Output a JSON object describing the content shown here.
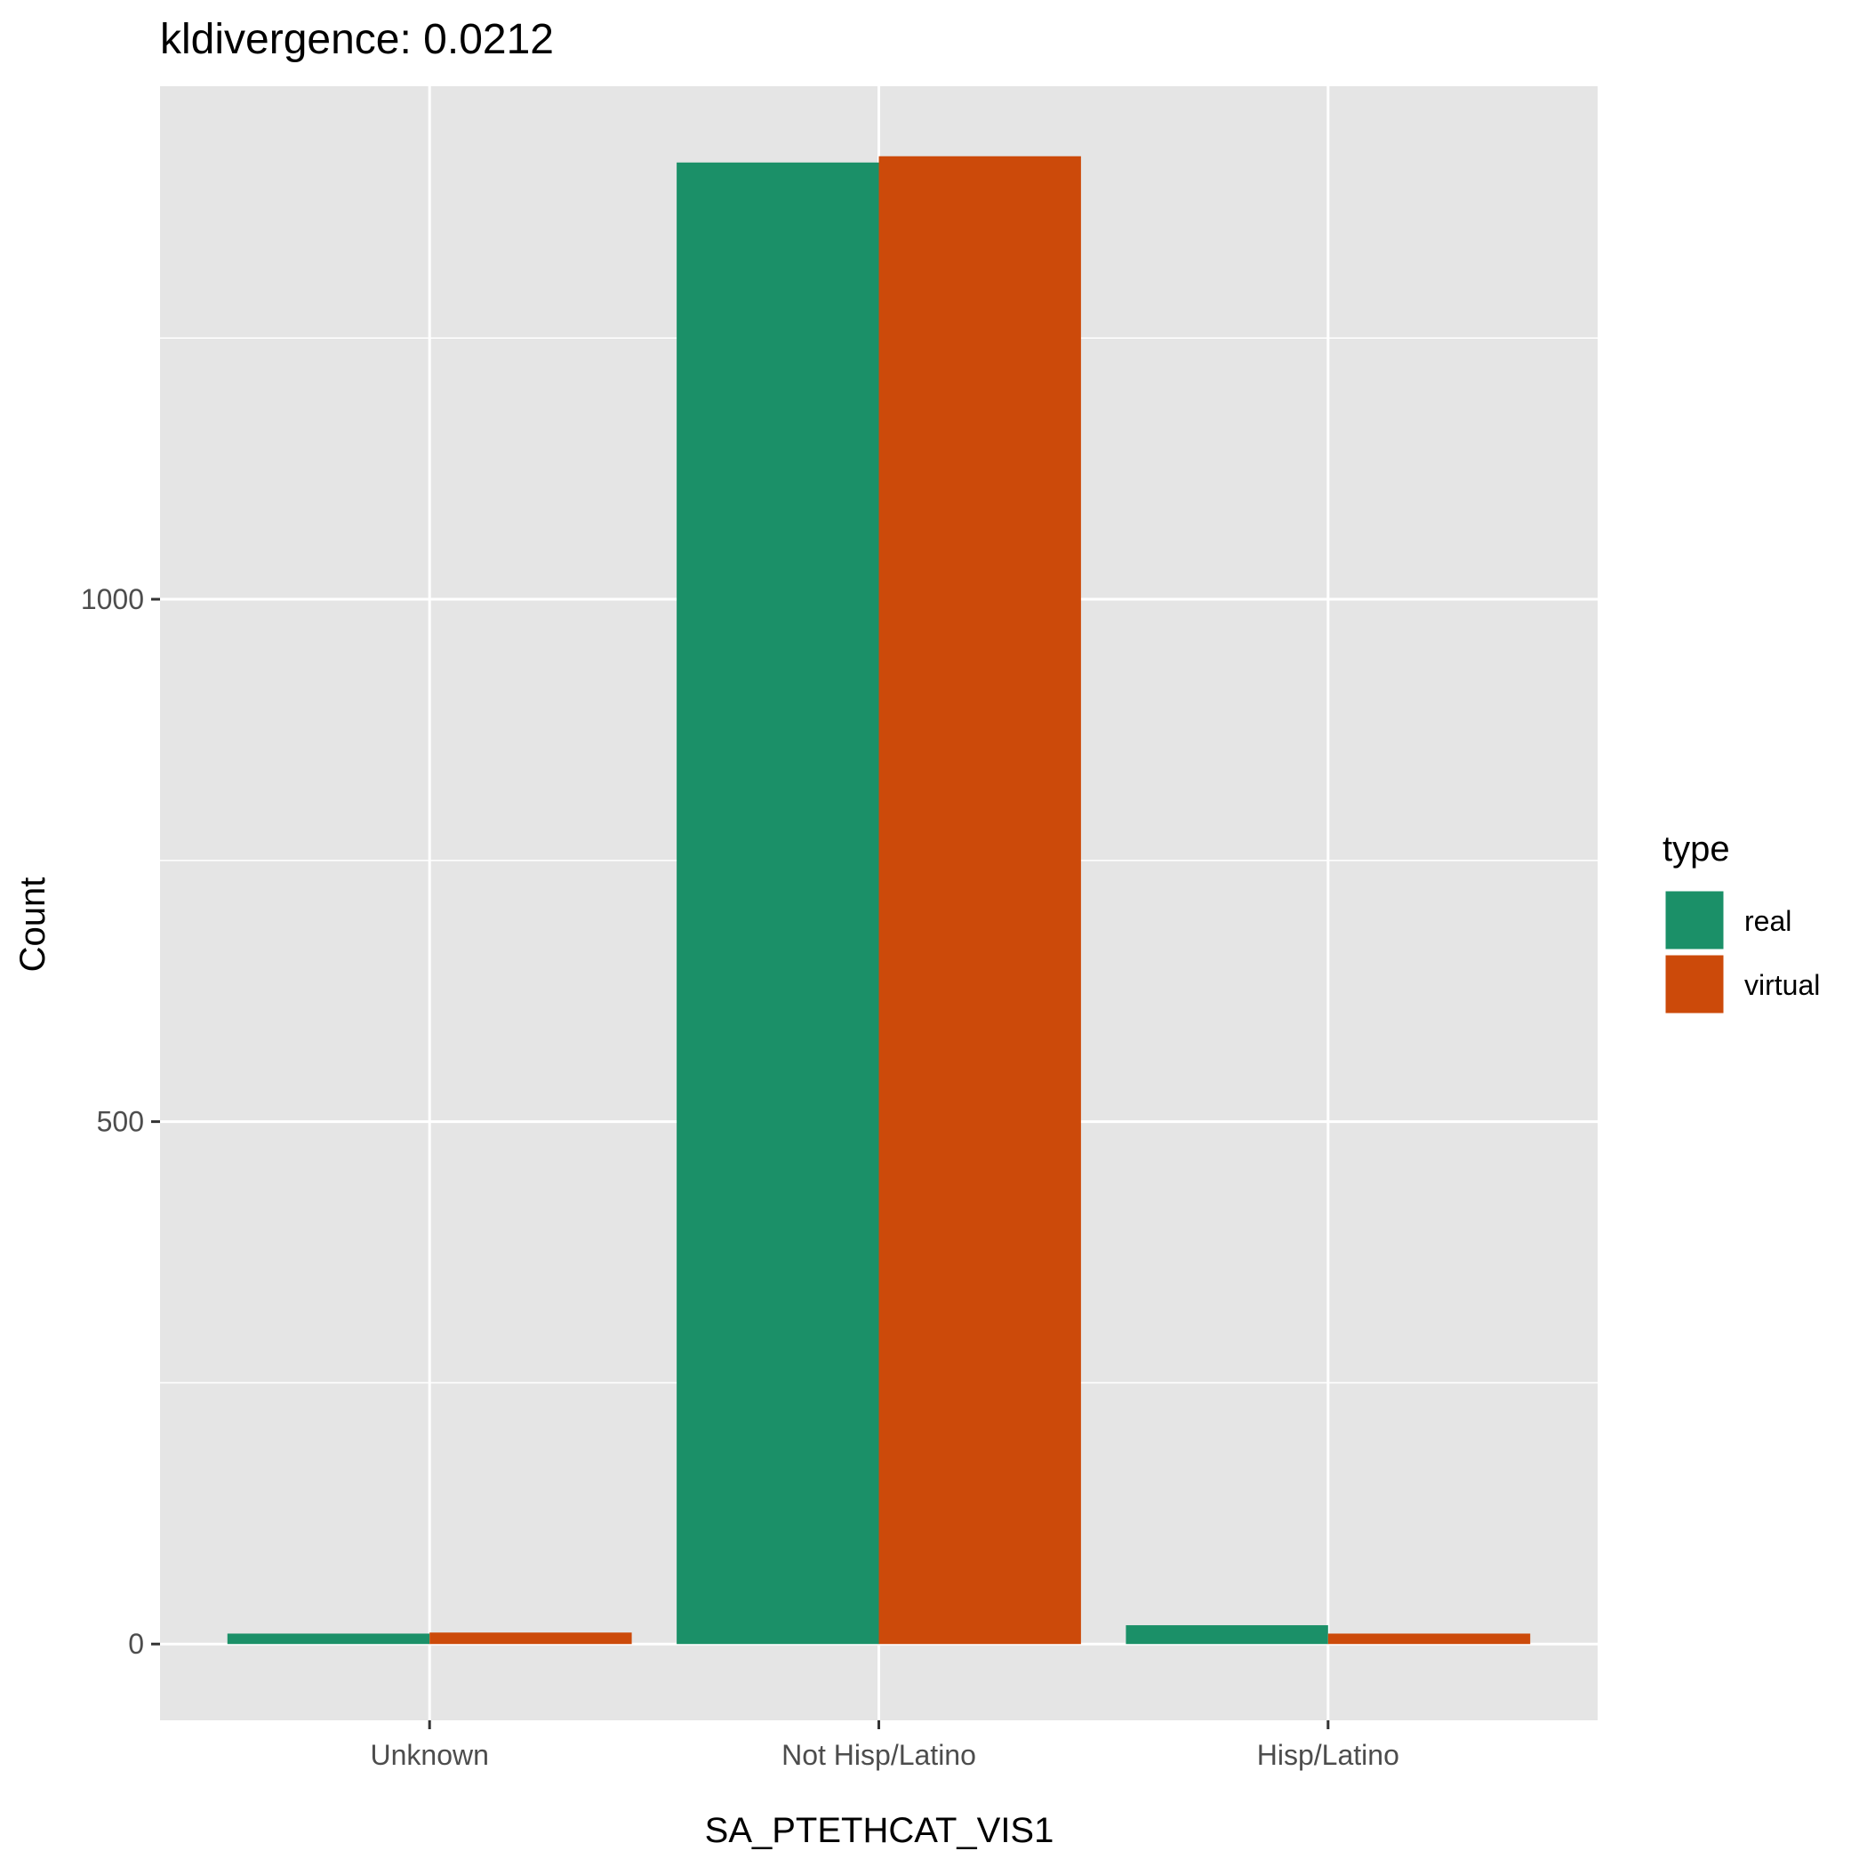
{
  "chart_data": {
    "type": "bar",
    "title": "kldivergence: 0.0212",
    "xlabel": "SA_PTETHCAT_VIS1",
    "ylabel": "Count",
    "categories": [
      "Unknown",
      "Not Hisp/Latino",
      "Hisp/Latino"
    ],
    "series": [
      {
        "name": "real",
        "color": "#1b9068",
        "values": [
          10,
          1418,
          18
        ]
      },
      {
        "name": "virtual",
        "color": "#cc4a0a",
        "values": [
          11,
          1424,
          10
        ]
      }
    ],
    "ylim": [
      -73,
      1491
    ],
    "yticks": [
      0,
      500,
      1000
    ],
    "grid": true,
    "legend": {
      "title": "type",
      "position": "right"
    },
    "background": "#e5e5e5"
  }
}
